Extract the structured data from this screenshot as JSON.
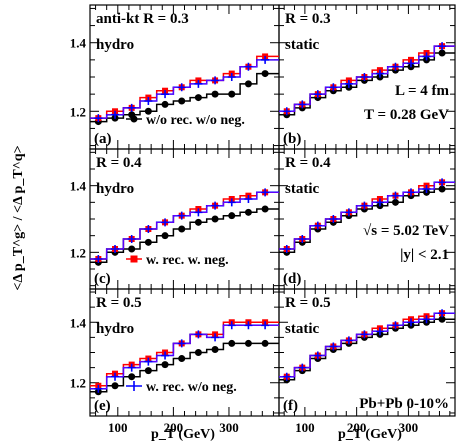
{
  "figure": {
    "ylabel": "<Δ p_T^g> / <Δ p_T^q>",
    "xlabel": "p_T (GeV)"
  },
  "axes": {
    "x_range": [
      50,
      390
    ],
    "y_range": [
      1.09,
      1.51
    ],
    "x_ticks": [
      100,
      200,
      300
    ],
    "y_ticks": [
      1.2,
      1.4
    ],
    "y_tick_labels": [
      "1.2",
      "1.4"
    ],
    "x_tick_labels": [
      "100",
      "200",
      "300"
    ]
  },
  "legend": {
    "black": "w/o rec. w/o neg.",
    "red": "w. rec. w. neg.",
    "blue": "w. rec. w/o neg."
  },
  "colors": {
    "black": "#000000",
    "red": "#ff0000",
    "blue": "#0000ff",
    "magenta": "#ff00ff"
  },
  "chart_data": [
    {
      "type": "line",
      "panel": "a",
      "label": "(a)",
      "lines": [
        "anti-kt R = 0.3",
        "hydro"
      ],
      "legend": "w/o rec. w/o neg.",
      "x": [
        65,
        95,
        125,
        155,
        185,
        215,
        245,
        275,
        305,
        335,
        365
      ],
      "series": [
        {
          "values": [
            1.17,
            1.18,
            1.19,
            1.2,
            1.22,
            1.23,
            1.24,
            1.25,
            1.25,
            1.28,
            1.31
          ]
        },
        {
          "values": [
            1.18,
            1.2,
            1.21,
            1.24,
            1.26,
            1.27,
            1.29,
            1.29,
            1.31,
            1.33,
            1.36
          ]
        },
        {
          "values": [
            1.18,
            1.19,
            1.21,
            1.23,
            1.25,
            1.27,
            1.28,
            1.29,
            1.3,
            1.33,
            1.35
          ]
        }
      ]
    },
    {
      "type": "line",
      "panel": "b",
      "label": "(b)",
      "lines": [
        "R = 0.3",
        "static",
        "L = 4 fm",
        "T = 0.28 GeV"
      ],
      "x": [
        65,
        95,
        125,
        155,
        185,
        215,
        245,
        275,
        305,
        335,
        365
      ],
      "series": [
        {
          "values": [
            1.19,
            1.21,
            1.24,
            1.26,
            1.27,
            1.29,
            1.3,
            1.32,
            1.33,
            1.35,
            1.37
          ]
        },
        {
          "values": [
            1.2,
            1.22,
            1.25,
            1.27,
            1.29,
            1.3,
            1.32,
            1.33,
            1.35,
            1.37,
            1.39
          ]
        },
        {
          "values": [
            1.2,
            1.22,
            1.25,
            1.27,
            1.28,
            1.3,
            1.31,
            1.33,
            1.34,
            1.36,
            1.39
          ]
        }
      ]
    },
    {
      "type": "line",
      "panel": "c",
      "label": "(c)",
      "lines": [
        "R = 0.4",
        "hydro"
      ],
      "legend": "w. rec. w. neg.",
      "x": [
        65,
        95,
        125,
        155,
        185,
        215,
        245,
        275,
        305,
        335,
        365
      ],
      "series": [
        {
          "values": [
            1.17,
            1.2,
            1.21,
            1.23,
            1.25,
            1.27,
            1.29,
            1.3,
            1.31,
            1.32,
            1.33
          ]
        },
        {
          "values": [
            1.18,
            1.21,
            1.24,
            1.27,
            1.29,
            1.31,
            1.33,
            1.34,
            1.36,
            1.37,
            1.38
          ]
        },
        {
          "values": [
            1.18,
            1.21,
            1.24,
            1.27,
            1.29,
            1.31,
            1.32,
            1.34,
            1.35,
            1.36,
            1.38
          ]
        }
      ]
    },
    {
      "type": "line",
      "panel": "d",
      "label": "(d)",
      "lines": [
        "R = 0.4",
        "static",
        "√s = 5.02 TeV",
        "|y| < 2.1"
      ],
      "x": [
        65,
        95,
        125,
        155,
        185,
        215,
        245,
        275,
        305,
        335,
        365
      ],
      "series": [
        {
          "values": [
            1.2,
            1.23,
            1.27,
            1.29,
            1.31,
            1.33,
            1.34,
            1.35,
            1.37,
            1.38,
            1.39
          ]
        },
        {
          "values": [
            1.21,
            1.24,
            1.28,
            1.3,
            1.32,
            1.34,
            1.36,
            1.37,
            1.38,
            1.4,
            1.41
          ]
        },
        {
          "values": [
            1.21,
            1.24,
            1.28,
            1.3,
            1.32,
            1.34,
            1.35,
            1.37,
            1.38,
            1.39,
            1.41
          ]
        }
      ]
    },
    {
      "type": "line",
      "panel": "e",
      "label": "(e)",
      "lines": [
        "R = 0.5",
        "hydro"
      ],
      "legend": "w. rec. w/o neg.",
      "x": [
        65,
        95,
        125,
        155,
        185,
        215,
        245,
        275,
        305,
        335,
        365
      ],
      "series": [
        {
          "values": [
            1.17,
            1.19,
            1.22,
            1.24,
            1.26,
            1.28,
            1.3,
            1.31,
            1.33,
            1.33,
            1.33
          ]
        },
        {
          "values": [
            1.19,
            1.23,
            1.26,
            1.28,
            1.3,
            1.33,
            1.36,
            1.36,
            1.4,
            1.4,
            1.4
          ]
        },
        {
          "values": [
            1.18,
            1.22,
            1.25,
            1.27,
            1.29,
            1.33,
            1.36,
            1.35,
            1.39,
            1.39,
            1.39
          ]
        }
      ]
    },
    {
      "type": "line",
      "panel": "f",
      "label": "(f)",
      "lines": [
        "R = 0.5",
        "static",
        "Pb+Pb 0-10%"
      ],
      "x": [
        65,
        95,
        125,
        155,
        185,
        215,
        245,
        275,
        305,
        335,
        365
      ],
      "series": [
        {
          "values": [
            1.21,
            1.24,
            1.28,
            1.31,
            1.33,
            1.35,
            1.36,
            1.38,
            1.39,
            1.4,
            1.41
          ]
        },
        {
          "values": [
            1.22,
            1.25,
            1.29,
            1.32,
            1.34,
            1.36,
            1.38,
            1.39,
            1.41,
            1.42,
            1.43
          ]
        },
        {
          "values": [
            1.22,
            1.25,
            1.29,
            1.32,
            1.34,
            1.36,
            1.37,
            1.39,
            1.4,
            1.41,
            1.43
          ]
        }
      ]
    }
  ]
}
